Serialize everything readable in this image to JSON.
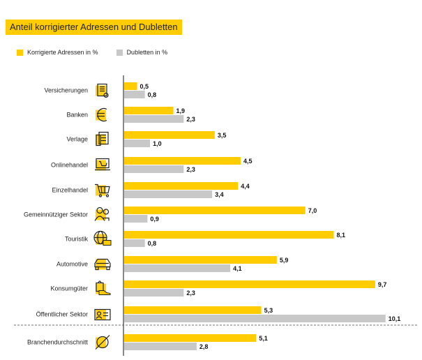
{
  "chart_data": {
    "type": "bar",
    "orientation": "horizontal",
    "title": "Anteil korrigierter Adressen und Dubletten",
    "categories": [
      "Versicherungen",
      "Banken",
      "Verlage",
      "Onlinehandel",
      "Einzelhandel",
      "Gemeinnütziger Sektor",
      "Touristik",
      "Automotive",
      "Konsumgüter",
      "Öffentlicher Sektor",
      "Branchendurchschnitt"
    ],
    "series": [
      {
        "name": "Korrigierte Adressen in %",
        "color": "#ffcc00",
        "values": [
          0.5,
          1.9,
          3.5,
          4.5,
          4.4,
          7.0,
          8.1,
          5.9,
          9.7,
          5.3,
          5.1
        ],
        "labels": [
          "0,5",
          "1,9",
          "3,5",
          "4,5",
          "4,4",
          "7,0",
          "8,1",
          "5,9",
          "9,7",
          "5,3",
          "5,1"
        ]
      },
      {
        "name": "Dubletten in %",
        "color": "#c8c8c8",
        "values": [
          0.8,
          2.3,
          1.0,
          2.3,
          3.4,
          0.9,
          0.8,
          4.1,
          2.3,
          10.1,
          2.8
        ],
        "labels": [
          "0,8",
          "2,3",
          "1,0",
          "2,3",
          "3,4",
          "0,9",
          "0,8",
          "4,1",
          "2,3",
          "10,1",
          "2,8"
        ]
      }
    ],
    "icons": [
      "certificate-icon",
      "euro-icon",
      "newspaper-icon",
      "laptop-cart-icon",
      "shopping-cart-icon",
      "people-icon",
      "globe-ticket-icon",
      "car-icon",
      "shoe-bag-icon",
      "id-card-icon",
      "average-icon"
    ],
    "xlim": [
      0,
      10.1
    ],
    "grid": false,
    "legend_position": "top-left"
  }
}
